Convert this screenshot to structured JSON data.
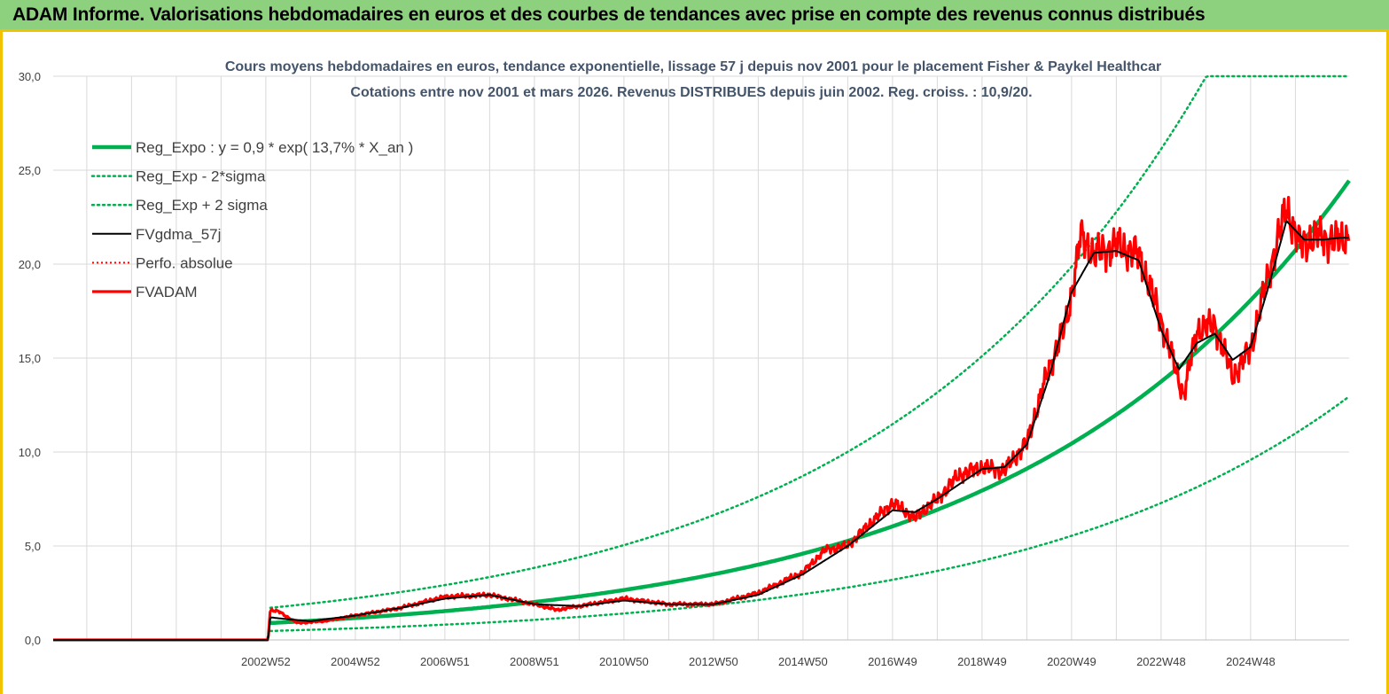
{
  "banner": {
    "title": "ADAM Informe. Valorisations hebdomadaires en euros et des courbes de tendances avec prise en compte des revenus connus distribués"
  },
  "colors": {
    "banner_bg": "#8dd17f",
    "accent_border": "#f2c200",
    "green": "#00b050",
    "red": "#ff0000",
    "black": "#000000",
    "title_text": "#44546a"
  },
  "chart_data": {
    "type": "line",
    "title_line1": "Cours moyens hebdomadaires en euros, tendance exponentielle, lissage 57 j depuis nov 2001 pour le placement Fisher & Paykel Healthcar",
    "title_line2": "Cotations entre nov 2001 et mars 2026. Revenus DISTRIBUES depuis juin 2002. Reg. croiss. : 10,9/20.",
    "ylim": [
      0,
      30
    ],
    "y_ticks": [
      "0,0",
      "5,0",
      "10,0",
      "15,0",
      "20,0",
      "25,0",
      "30,0"
    ],
    "xlim": [
      1997.25,
      2026.2
    ],
    "x_tick_labels": [
      "2002W52",
      "2004W52",
      "2006W51",
      "2008W51",
      "2010W50",
      "2012W50",
      "2014W50",
      "2016W49",
      "2018W49",
      "2020W49",
      "2022W48",
      "2024W48"
    ],
    "x_tick_years": [
      2002.0,
      2004.0,
      2006.0,
      2008.0,
      2010.0,
      2012.0,
      2014.0,
      2016.0,
      2018.0,
      2020.0,
      2022.0,
      2024.0
    ],
    "x_gridlines": [
      1998,
      1999,
      2000,
      2001,
      2002,
      2003,
      2004,
      2005,
      2006,
      2007,
      2008,
      2009,
      2010,
      2011,
      2012,
      2013,
      2014,
      2015,
      2016,
      2017,
      2018,
      2019,
      2020,
      2021,
      2022,
      2023,
      2024,
      2025
    ],
    "start_year": 2002.1,
    "end_year": 2026.2,
    "regression": {
      "a": 0.9,
      "rate": 0.137,
      "lower_factor": 0.53,
      "upper_factor": 1.9,
      "cap": 30
    },
    "series": [
      {
        "name": "Reg_Expo : y = 0,9 * exp( 13,7% *  X_an )",
        "style": "green-thick"
      },
      {
        "name": "Reg_Exp - 2*sigma",
        "style": "green-dotted"
      },
      {
        "name": "Reg_Exp + 2 sigma",
        "style": "green-dotted"
      },
      {
        "name": "FVgdma_57j",
        "style": "black-thin"
      },
      {
        "name": "Perfo. absolue",
        "style": "red-dotted"
      },
      {
        "name": "FVADAM",
        "style": "red-thick"
      }
    ],
    "price_anchors": [
      [
        1997.25,
        0
      ],
      [
        2002.05,
        0
      ],
      [
        2002.1,
        1.6
      ],
      [
        2002.3,
        1.5
      ],
      [
        2002.7,
        0.9
      ],
      [
        2003.3,
        1.0
      ],
      [
        2004.0,
        1.3
      ],
      [
        2005.0,
        1.7
      ],
      [
        2006.0,
        2.3
      ],
      [
        2007.0,
        2.4
      ],
      [
        2008.0,
        1.9
      ],
      [
        2008.5,
        1.6
      ],
      [
        2009.0,
        1.8
      ],
      [
        2010.0,
        2.2
      ],
      [
        2011.0,
        1.9
      ],
      [
        2012.0,
        1.9
      ],
      [
        2013.0,
        2.5
      ],
      [
        2014.0,
        3.6
      ],
      [
        2014.5,
        4.8
      ],
      [
        2015.0,
        5.0
      ],
      [
        2015.5,
        6.2
      ],
      [
        2016.0,
        7.3
      ],
      [
        2016.5,
        6.5
      ],
      [
        2017.0,
        7.5
      ],
      [
        2017.5,
        8.8
      ],
      [
        2018.0,
        9.2
      ],
      [
        2018.5,
        9.0
      ],
      [
        2019.0,
        10.5
      ],
      [
        2019.5,
        14.5
      ],
      [
        2019.9,
        17.0
      ],
      [
        2020.2,
        21.5
      ],
      [
        2020.5,
        20.5
      ],
      [
        2021.0,
        21.0
      ],
      [
        2021.5,
        20.5
      ],
      [
        2022.0,
        17.0
      ],
      [
        2022.5,
        13.0
      ],
      [
        2022.8,
        16.5
      ],
      [
        2023.2,
        16.8
      ],
      [
        2023.6,
        14.0
      ],
      [
        2024.0,
        15.5
      ],
      [
        2024.4,
        19.5
      ],
      [
        2024.8,
        23.0
      ],
      [
        2025.1,
        21.0
      ],
      [
        2025.5,
        21.5
      ],
      [
        2025.9,
        21.2
      ],
      [
        2026.2,
        21.5
      ]
    ],
    "moving_average_anchors": [
      [
        1997.25,
        0
      ],
      [
        2002.05,
        0
      ],
      [
        2002.1,
        1.2
      ],
      [
        2002.5,
        1.1
      ],
      [
        2003.0,
        1.0
      ],
      [
        2004.0,
        1.3
      ],
      [
        2005.0,
        1.7
      ],
      [
        2006.0,
        2.2
      ],
      [
        2007.0,
        2.4
      ],
      [
        2008.0,
        1.9
      ],
      [
        2009.0,
        1.8
      ],
      [
        2010.0,
        2.1
      ],
      [
        2011.0,
        1.9
      ],
      [
        2012.0,
        1.9
      ],
      [
        2013.0,
        2.4
      ],
      [
        2014.0,
        3.5
      ],
      [
        2015.0,
        5.0
      ],
      [
        2016.0,
        6.9
      ],
      [
        2016.5,
        6.8
      ],
      [
        2017.0,
        7.5
      ],
      [
        2018.0,
        9.1
      ],
      [
        2018.5,
        9.2
      ],
      [
        2019.0,
        10.4
      ],
      [
        2019.5,
        14.0
      ],
      [
        2020.0,
        18.5
      ],
      [
        2020.5,
        20.6
      ],
      [
        2021.0,
        20.7
      ],
      [
        2021.5,
        20.2
      ],
      [
        2022.0,
        16.5
      ],
      [
        2022.4,
        14.4
      ],
      [
        2022.8,
        15.8
      ],
      [
        2023.2,
        16.3
      ],
      [
        2023.6,
        14.9
      ],
      [
        2024.0,
        15.6
      ],
      [
        2024.4,
        18.8
      ],
      [
        2024.8,
        22.3
      ],
      [
        2025.2,
        21.3
      ],
      [
        2025.6,
        21.3
      ],
      [
        2026.0,
        21.4
      ],
      [
        2026.2,
        21.4
      ]
    ]
  }
}
